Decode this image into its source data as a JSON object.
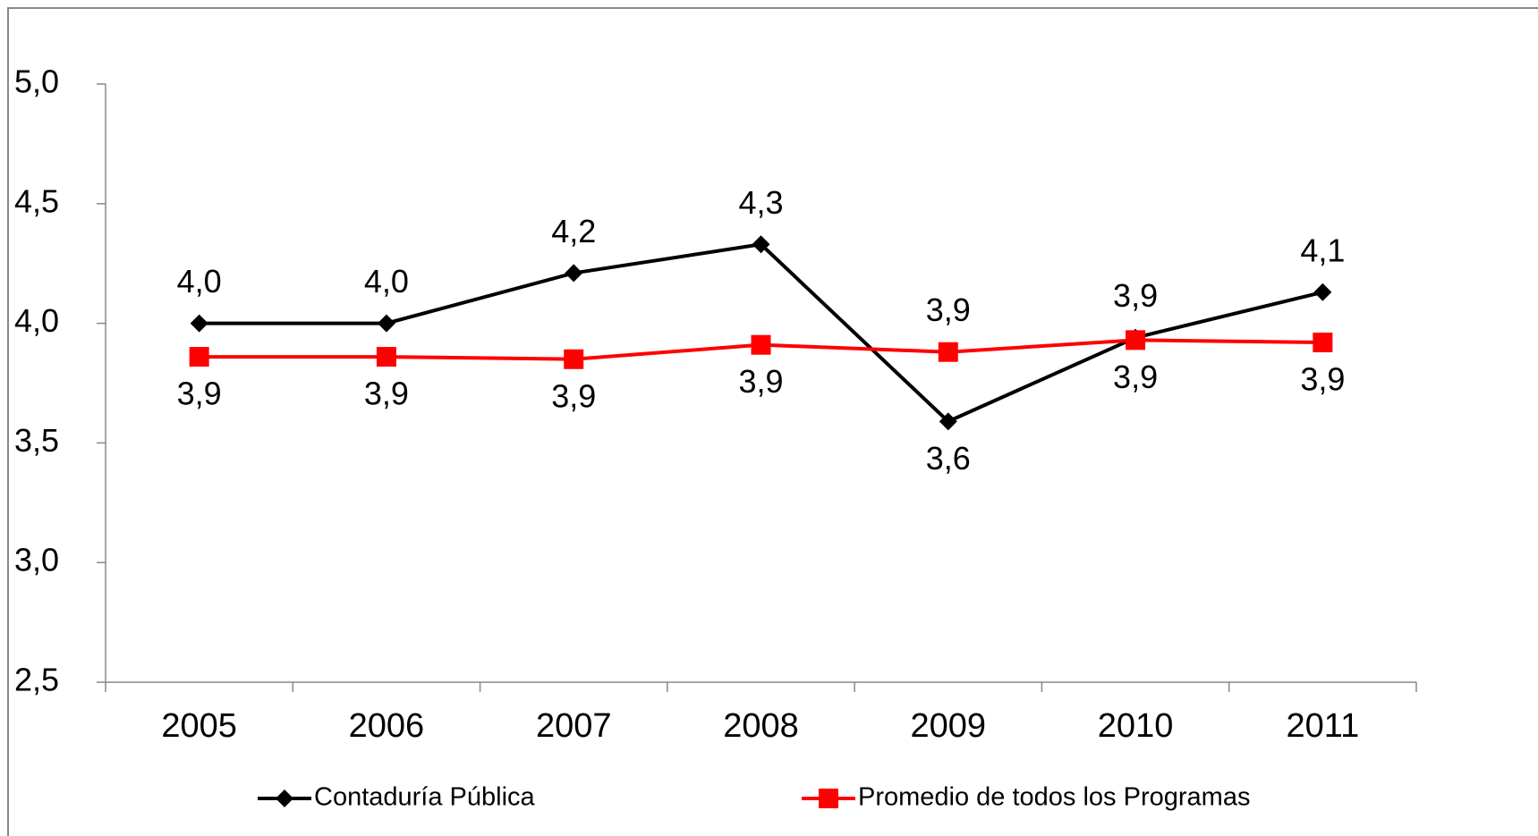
{
  "chart_data": {
    "type": "line",
    "categories": [
      "2005",
      "2006",
      "2007",
      "2008",
      "2009",
      "2010",
      "2011"
    ],
    "series": [
      {
        "name": "Contaduría Pública",
        "color": "#000000",
        "marker": "diamond",
        "values": [
          4.0,
          4.0,
          4.21,
          4.33,
          3.59,
          3.94,
          4.13
        ],
        "value_labels": [
          "4,0",
          "4,0",
          "4,2",
          "4,3",
          "3,6",
          "3,9",
          "4,1"
        ]
      },
      {
        "name": "Promedio de todos los Programas",
        "color": "#ff0000",
        "marker": "square",
        "values": [
          3.86,
          3.86,
          3.85,
          3.91,
          3.88,
          3.93,
          3.92
        ],
        "value_labels": [
          "3,9",
          "3,9",
          "3,9",
          "3,9",
          "3,9",
          "3,9",
          "3,9"
        ]
      }
    ],
    "ylim": [
      2.5,
      5.0
    ],
    "yticks": [
      {
        "value": 2.5,
        "label": "2,5"
      },
      {
        "value": 3.0,
        "label": "3,0"
      },
      {
        "value": 3.5,
        "label": "3,5"
      },
      {
        "value": 4.0,
        "label": "4,0"
      },
      {
        "value": 4.5,
        "label": "4,5"
      },
      {
        "value": 5.0,
        "label": "5,0"
      }
    ],
    "grid": false,
    "legend": "bottom"
  }
}
